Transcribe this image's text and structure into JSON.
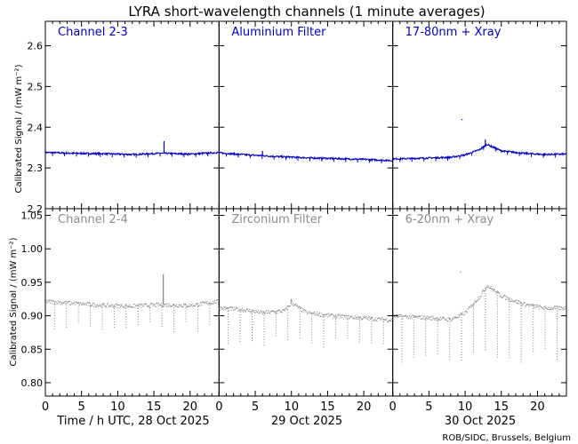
{
  "title": "LYRA short-wavelength channels (1 minute averages)",
  "credit": "ROB/SIDC, Brussels, Belgium",
  "x_axis": {
    "label": "Time / h UTC, 28 Oct 2025",
    "day_labels": [
      "29 Oct 2025",
      "30 Oct 2025"
    ],
    "ticks": [
      "0",
      "5",
      "10",
      "15",
      "20"
    ]
  },
  "top_ylabel": "Calibrated Signal / (mW m⁻²)",
  "bottom_ylabel": "Calibrated Signal / (mW m⁻²)",
  "colors": {
    "top_series": "#0000c8",
    "bottom_series": "#808080",
    "top_labels": "#0000c8",
    "bottom_labels": "#8c8c8c"
  },
  "chart_data": [
    {
      "type": "scatter",
      "row": "top",
      "ylim": [
        2.2,
        2.66
      ],
      "yticks": [
        "2.2",
        "2.3",
        "2.4",
        "2.5",
        "2.6"
      ],
      "xlim": [
        0,
        72
      ],
      "panels": [
        {
          "name": "Channel 2-3",
          "baseline": [
            [
              0,
              2.338
            ],
            [
              4,
              2.336
            ],
            [
              8,
              2.335
            ],
            [
              12,
              2.333
            ],
            [
              16,
              2.336
            ],
            [
              20,
              2.334
            ],
            [
              24,
              2.338
            ]
          ],
          "spikes": [
            [
              16.4,
              2.366
            ]
          ],
          "dips": []
        },
        {
          "name": "Aluminium Filter",
          "baseline": [
            [
              0,
              2.337
            ],
            [
              4,
              2.332
            ],
            [
              8,
              2.328
            ],
            [
              12,
              2.325
            ],
            [
              16,
              2.323
            ],
            [
              20,
              2.321
            ],
            [
              24,
              2.318
            ]
          ],
          "spikes": [
            [
              6,
              2.342
            ]
          ],
          "dips": []
        },
        {
          "name": "17-80nm + Xray",
          "baseline": [
            [
              0,
              2.322
            ],
            [
              4,
              2.324
            ],
            [
              8,
              2.326
            ],
            [
              10,
              2.332
            ],
            [
              12,
              2.345
            ],
            [
              13,
              2.358
            ],
            [
              15,
              2.342
            ],
            [
              18,
              2.336
            ],
            [
              21,
              2.333
            ],
            [
              24,
              2.334
            ]
          ],
          "spikes": [
            [
              12.8,
              2.37
            ],
            [
              9.5,
              2.42
            ]
          ],
          "dips": []
        }
      ]
    },
    {
      "type": "scatter",
      "row": "bottom",
      "ylim": [
        0.78,
        1.06
      ],
      "yticks": [
        "0.80",
        "0.85",
        "0.90",
        "0.95",
        "1.00",
        "1.05"
      ],
      "xlim": [
        0,
        72
      ],
      "panels": [
        {
          "name": "Channel 2-4",
          "baseline": [
            [
              0,
              0.922
            ],
            [
              4,
              0.919
            ],
            [
              8,
              0.916
            ],
            [
              12,
              0.915
            ],
            [
              16,
              0.917
            ],
            [
              20,
              0.916
            ],
            [
              24,
              0.922
            ]
          ],
          "spikes": [
            [
              16.3,
              0.962
            ]
          ],
          "dip_min": 0.875
        },
        {
          "name": "Zirconium Filter",
          "baseline": [
            [
              0,
              0.912
            ],
            [
              3,
              0.91
            ],
            [
              6,
              0.905
            ],
            [
              9,
              0.908
            ],
            [
              10,
              0.92
            ],
            [
              12,
              0.905
            ],
            [
              16,
              0.9
            ],
            [
              20,
              0.897
            ],
            [
              24,
              0.894
            ]
          ],
          "spikes": [
            [
              10,
              0.925
            ]
          ],
          "dip_min": 0.85
        },
        {
          "name": "6-20nm + Xray",
          "baseline": [
            [
              0,
              0.9
            ],
            [
              4,
              0.898
            ],
            [
              8,
              0.895
            ],
            [
              10,
              0.905
            ],
            [
              12,
              0.93
            ],
            [
              13,
              0.946
            ],
            [
              15,
              0.93
            ],
            [
              18,
              0.918
            ],
            [
              21,
              0.912
            ],
            [
              24,
              0.912
            ]
          ],
          "spikes": [
            [
              9.3,
              0.966
            ]
          ],
          "dip_min": 0.83
        }
      ]
    }
  ]
}
